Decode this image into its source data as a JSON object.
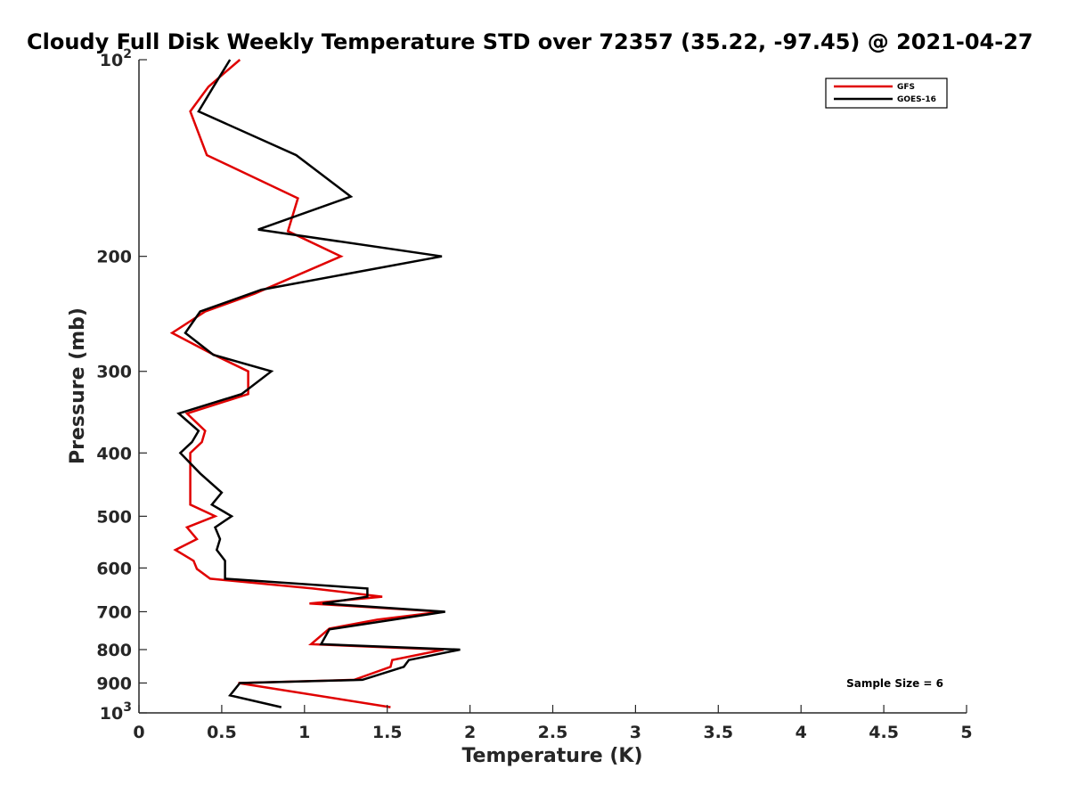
{
  "chart_data": {
    "type": "line",
    "title": "Cloudy Full Disk Weekly Temperature STD over 72357 (35.22, -97.45) @ 2021-04-27",
    "xlabel": "Temperature (K)",
    "ylabel": "Pressure (mb)",
    "xlim": [
      0,
      5
    ],
    "ylim": [
      100,
      1000
    ],
    "yscale": "log",
    "y_reversed": true,
    "x_ticks": [
      0,
      0.5,
      1,
      1.5,
      2,
      2.5,
      3,
      3.5,
      4,
      4.5,
      5
    ],
    "x_tick_labels": [
      "0",
      "0.5",
      "1",
      "1.5",
      "2",
      "2.5",
      "3",
      "3.5",
      "4",
      "4.5",
      "5"
    ],
    "y_ticks": [
      100,
      200,
      300,
      400,
      500,
      600,
      700,
      800,
      900,
      1000
    ],
    "y_tick_labels": [
      {
        "base": "10",
        "exp": "2"
      },
      {
        "base": "200"
      },
      {
        "base": "300"
      },
      {
        "base": "400"
      },
      {
        "base": "500"
      },
      {
        "base": "600"
      },
      {
        "base": "700"
      },
      {
        "base": "800"
      },
      {
        "base": "900"
      },
      {
        "base": "10",
        "exp": "3"
      }
    ],
    "grid": false,
    "legend_position": "top-right",
    "annotation": "Sample Size = 6",
    "series": [
      {
        "name": "GFS",
        "color": "#e00000",
        "points": [
          [
            0.61,
            100
          ],
          [
            0.42,
            110
          ],
          [
            0.31,
            120
          ],
          [
            0.41,
            140
          ],
          [
            0.96,
            163
          ],
          [
            0.9,
            183
          ],
          [
            1.22,
            200
          ],
          [
            0.7,
            228
          ],
          [
            0.4,
            243
          ],
          [
            0.2,
            262
          ],
          [
            0.44,
            282
          ],
          [
            0.66,
            300
          ],
          [
            0.66,
            325
          ],
          [
            0.29,
            348
          ],
          [
            0.4,
            370
          ],
          [
            0.38,
            385
          ],
          [
            0.31,
            400
          ],
          [
            0.31,
            430
          ],
          [
            0.31,
            460
          ],
          [
            0.31,
            480
          ],
          [
            0.46,
            500
          ],
          [
            0.29,
            520
          ],
          [
            0.35,
            542
          ],
          [
            0.22,
            563
          ],
          [
            0.33,
            585
          ],
          [
            0.35,
            602
          ],
          [
            0.43,
            623
          ],
          [
            1.05,
            645
          ],
          [
            1.47,
            664
          ],
          [
            1.03,
            680
          ],
          [
            1.83,
            700
          ],
          [
            1.44,
            720
          ],
          [
            1.15,
            743
          ],
          [
            1.04,
            785
          ],
          [
            1.84,
            800
          ],
          [
            1.53,
            830
          ],
          [
            1.52,
            850
          ],
          [
            1.3,
            890
          ],
          [
            0.6,
            900
          ],
          [
            1.52,
            980
          ]
        ]
      },
      {
        "name": "GOES-16",
        "color": "#000000",
        "points": [
          [
            0.55,
            100
          ],
          [
            0.45,
            110
          ],
          [
            0.36,
            120
          ],
          [
            0.95,
            140
          ],
          [
            1.28,
            162
          ],
          [
            0.72,
            182
          ],
          [
            1.83,
            200
          ],
          [
            0.74,
            225
          ],
          [
            0.37,
            243
          ],
          [
            0.28,
            262
          ],
          [
            0.45,
            283
          ],
          [
            0.8,
            300
          ],
          [
            0.62,
            325
          ],
          [
            0.24,
            348
          ],
          [
            0.36,
            370
          ],
          [
            0.32,
            385
          ],
          [
            0.25,
            400
          ],
          [
            0.37,
            430
          ],
          [
            0.5,
            460
          ],
          [
            0.44,
            480
          ],
          [
            0.56,
            500
          ],
          [
            0.46,
            520
          ],
          [
            0.49,
            542
          ],
          [
            0.47,
            563
          ],
          [
            0.52,
            585
          ],
          [
            0.52,
            602
          ],
          [
            0.52,
            623
          ],
          [
            1.38,
            645
          ],
          [
            1.38,
            664
          ],
          [
            1.11,
            680
          ],
          [
            1.85,
            700
          ],
          [
            1.15,
            745
          ],
          [
            1.1,
            785
          ],
          [
            1.94,
            800
          ],
          [
            1.63,
            830
          ],
          [
            1.6,
            850
          ],
          [
            1.35,
            890
          ],
          [
            0.61,
            900
          ],
          [
            0.55,
            940
          ],
          [
            0.86,
            980
          ]
        ]
      }
    ]
  }
}
